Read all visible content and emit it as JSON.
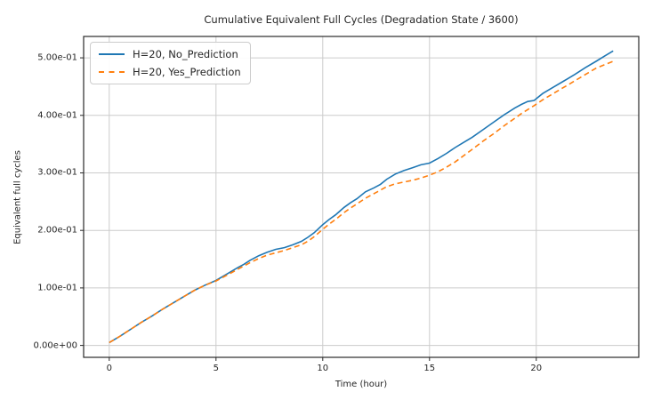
{
  "chart_data": {
    "type": "line",
    "title": "Cumulative Equivalent Full Cycles (Degradation State / 3600)",
    "xlabel": "Time (hour)",
    "ylabel": "Equivalent full cycles",
    "xlim": [
      -1.2,
      24.8
    ],
    "ylim": [
      -0.0207,
      0.5372
    ],
    "xticks": [
      0,
      5,
      10,
      15,
      20
    ],
    "xtick_labels": [
      "0",
      "5",
      "10",
      "15",
      "20"
    ],
    "yticks": [
      0.0,
      0.1,
      0.2,
      0.3,
      0.4,
      0.5
    ],
    "ytick_labels": [
      "0.00e+00",
      "1.00e-01",
      "2.00e-01",
      "3.00e-01",
      "4.00e-01",
      "5.00e-01"
    ],
    "grid": true,
    "grid_color": "#cccccc",
    "spine_color": "#2a2a2a",
    "legend_position": "upper left",
    "series": [
      {
        "name": "H=20, No_Prediction",
        "color": "#1f77b4",
        "style": "solid",
        "x": [
          0,
          0.5,
          1,
          1.5,
          2,
          2.5,
          3,
          3.5,
          4,
          4.5,
          5,
          5.5,
          6,
          6.3,
          6.6,
          7,
          7.4,
          7.8,
          8.2,
          8.6,
          9,
          9.3,
          9.6,
          10,
          10.3,
          10.6,
          11,
          11.3,
          11.6,
          12,
          12.4,
          12.7,
          13,
          13.4,
          13.8,
          14.2,
          14.6,
          15,
          15.4,
          15.8,
          16.2,
          16.6,
          17,
          17.5,
          18,
          18.5,
          19,
          19.3,
          19.6,
          19.9,
          20.3,
          20.8,
          21.3,
          21.8,
          22.3,
          22.8,
          23.2,
          23.6
        ],
        "y": [
          0.005,
          0.016,
          0.028,
          0.04,
          0.051,
          0.063,
          0.074,
          0.085,
          0.096,
          0.105,
          0.113,
          0.124,
          0.135,
          0.141,
          0.148,
          0.156,
          0.162,
          0.167,
          0.17,
          0.175,
          0.181,
          0.188,
          0.196,
          0.21,
          0.219,
          0.227,
          0.24,
          0.248,
          0.255,
          0.267,
          0.274,
          0.28,
          0.289,
          0.298,
          0.304,
          0.309,
          0.314,
          0.317,
          0.325,
          0.334,
          0.344,
          0.353,
          0.362,
          0.375,
          0.388,
          0.401,
          0.413,
          0.419,
          0.424,
          0.426,
          0.438,
          0.449,
          0.46,
          0.471,
          0.483,
          0.494,
          0.503,
          0.512
        ]
      },
      {
        "name": "H=20, Yes_Prediction",
        "color": "#ff7f0e",
        "style": "dashed",
        "x": [
          0,
          0.5,
          1,
          1.5,
          2,
          2.5,
          3,
          3.5,
          4,
          4.5,
          5,
          5.5,
          6,
          6.3,
          6.6,
          7,
          7.4,
          7.8,
          8.2,
          8.6,
          9,
          9.3,
          9.6,
          10,
          10.3,
          10.6,
          11,
          11.3,
          11.6,
          12,
          12.4,
          12.7,
          13,
          13.4,
          13.8,
          14.2,
          14.6,
          15,
          15.4,
          15.8,
          16.2,
          16.6,
          17,
          17.5,
          18,
          18.5,
          19,
          19.3,
          19.6,
          19.9,
          20.3,
          20.8,
          21.3,
          21.8,
          22.3,
          22.8,
          23.2,
          23.6
        ],
        "y": [
          0.005,
          0.016,
          0.028,
          0.04,
          0.051,
          0.063,
          0.074,
          0.085,
          0.096,
          0.105,
          0.112,
          0.122,
          0.132,
          0.138,
          0.144,
          0.151,
          0.157,
          0.161,
          0.165,
          0.17,
          0.175,
          0.181,
          0.189,
          0.202,
          0.211,
          0.219,
          0.231,
          0.239,
          0.246,
          0.256,
          0.264,
          0.27,
          0.276,
          0.281,
          0.284,
          0.287,
          0.291,
          0.296,
          0.302,
          0.31,
          0.319,
          0.33,
          0.341,
          0.355,
          0.368,
          0.382,
          0.395,
          0.403,
          0.41,
          0.417,
          0.427,
          0.438,
          0.449,
          0.46,
          0.471,
          0.482,
          0.488,
          0.494
        ]
      }
    ]
  }
}
